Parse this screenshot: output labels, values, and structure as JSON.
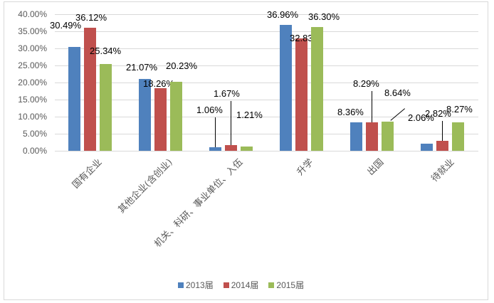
{
  "chart_data": {
    "type": "bar",
    "title": "",
    "xlabel": "",
    "ylabel": "",
    "ylim": [
      0,
      0.4
    ],
    "y_ticks": [
      "0.00%",
      "5.00%",
      "10.00%",
      "15.00%",
      "20.00%",
      "25.00%",
      "30.00%",
      "35.00%",
      "40.00%"
    ],
    "grid": true,
    "legend_position": "bottom",
    "categories": [
      "国有企业",
      "其他企业(含创业)",
      "机关、科研、事业单位、入伍",
      "升学",
      "出国",
      "待就业"
    ],
    "series": [
      {
        "name": "2013届",
        "color": "#4f81bd",
        "values": [
          30.49,
          21.07,
          1.06,
          36.96,
          8.36,
          2.06
        ],
        "labels": [
          "30.49%",
          "21.07%",
          "1.06%",
          "36.96%",
          "8.36%",
          "2.06%"
        ]
      },
      {
        "name": "2014届",
        "color": "#c0504d",
        "values": [
          36.12,
          18.26,
          1.67,
          32.83,
          8.29,
          2.82
        ],
        "labels": [
          "36.12%",
          "18.26%",
          "1.67%",
          "32.83%",
          "8.29%",
          "2.82%"
        ]
      },
      {
        "name": "2015届",
        "color": "#9bbb59",
        "values": [
          25.34,
          20.23,
          1.21,
          36.3,
          8.64,
          8.27
        ],
        "labels": [
          "25.34%",
          "20.23%",
          "1.21%",
          "36.30%",
          "8.64%",
          "8.27%"
        ]
      }
    ]
  },
  "legend": {
    "items": [
      {
        "label": "2013届",
        "color": "#4f81bd"
      },
      {
        "label": "2014届",
        "color": "#c0504d"
      },
      {
        "label": "2015届",
        "color": "#9bbb59"
      }
    ]
  }
}
